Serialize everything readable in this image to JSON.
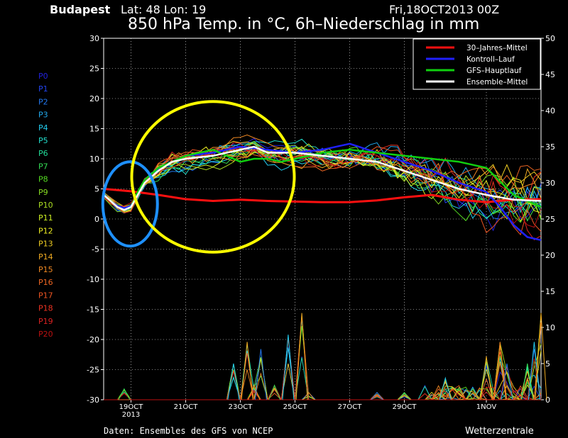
{
  "header": {
    "location": "Budapest",
    "lat_lon": "Lat: 48 Lon: 19",
    "run": "Fri,18OCT2013 00Z",
    "title": "850 hPa Temp. in °C, 6h–Niederschlag in mm"
  },
  "footer": {
    "source": "Daten: Ensembles des GFS von NCEP",
    "brand": "Wetterzentrale"
  },
  "colors": {
    "background": "#000000",
    "climate": "#ff1010",
    "control": "#2020ff",
    "main": "#10d010",
    "mean": "#ffffff",
    "blue_circle": "#1e90ff",
    "yellow_circle": "#ffff00"
  },
  "annotations": [
    {
      "name": "blue-circle",
      "color": "#1e90ff",
      "x_range": [
        "19OCT",
        "20OCT"
      ],
      "y_range": [
        -4.5,
        9.5
      ]
    },
    {
      "name": "yellow-circle",
      "color": "#ffff00",
      "x_range": [
        "22OCT",
        "25OCT"
      ],
      "y_range": [
        -5.5,
        19.5
      ]
    }
  ],
  "chart_data": {
    "type": "line",
    "title": "850 hPa Temp. in °C, 6h–Niederschlag in mm",
    "y_left_label": "°C",
    "y_right_label": "mm",
    "y_left_range": [
      -30,
      30
    ],
    "y_left_ticks": [
      30,
      25,
      20,
      15,
      10,
      5,
      0,
      -5,
      -10,
      -15,
      -20,
      -25,
      -30
    ],
    "y_right_range": [
      0,
      50
    ],
    "y_right_ticks": [
      50,
      45,
      40,
      35,
      30,
      25,
      20,
      15,
      10,
      5,
      0
    ],
    "x_unit": "hours since 18OCT2013 00Z",
    "x_range": [
      0,
      384
    ],
    "x_ticks": [
      {
        "label": "19OCT",
        "sub": "2013",
        "hour": 24
      },
      {
        "label": "21OCT",
        "sub": "",
        "hour": 72
      },
      {
        "label": "23OCT",
        "sub": "",
        "hour": 120
      },
      {
        "label": "25OCT",
        "sub": "",
        "hour": 168
      },
      {
        "label": "27OCT",
        "sub": "",
        "hour": 216
      },
      {
        "label": "29OCT",
        "sub": "",
        "hour": 264
      },
      {
        "label": "1NOV",
        "sub": "",
        "hour": 336
      }
    ],
    "grid": true,
    "legend_position": "top-right",
    "legend": [
      {
        "name": "30–Jahres–Mittel",
        "color": "#ff1010"
      },
      {
        "name": "Kontroll–Lauf",
        "color": "#2020ff"
      },
      {
        "name": "GFS–Hauptlauf",
        "color": "#10d010"
      },
      {
        "name": "Ensemble–Mittel",
        "color": "#ffffff"
      }
    ],
    "members": [
      {
        "name": "P0",
        "color": "#2222dd"
      },
      {
        "name": "P1",
        "color": "#2244ee"
      },
      {
        "name": "P2",
        "color": "#2277ee"
      },
      {
        "name": "P3",
        "color": "#22aaee"
      },
      {
        "name": "P4",
        "color": "#22ccee"
      },
      {
        "name": "P5",
        "color": "#22ddcc"
      },
      {
        "name": "P6",
        "color": "#22dd99"
      },
      {
        "name": "P7",
        "color": "#33dd55"
      },
      {
        "name": "P8",
        "color": "#55dd22"
      },
      {
        "name": "P9",
        "color": "#88dd22"
      },
      {
        "name": "P10",
        "color": "#aadd22"
      },
      {
        "name": "P11",
        "color": "#ccee22"
      },
      {
        "name": "P12",
        "color": "#eeee22"
      },
      {
        "name": "P13",
        "color": "#eecc22"
      },
      {
        "name": "P14",
        "color": "#eeaa22"
      },
      {
        "name": "P15",
        "color": "#ee8822"
      },
      {
        "name": "P16",
        "color": "#ee6622"
      },
      {
        "name": "P17",
        "color": "#ee5522"
      },
      {
        "name": "P18",
        "color": "#ee3322"
      },
      {
        "name": "P19",
        "color": "#dd2222"
      },
      {
        "name": "P20",
        "color": "#bb1111"
      }
    ],
    "series": [
      {
        "name": "30–Jahres–Mittel",
        "axis": "left",
        "color": "#ff1010",
        "x": [
          0,
          24,
          48,
          72,
          96,
          120,
          144,
          168,
          192,
          216,
          240,
          264,
          288,
          312,
          336,
          360,
          384
        ],
        "y": [
          5.0,
          4.6,
          4.0,
          3.3,
          3.0,
          3.2,
          3.0,
          2.9,
          2.8,
          2.8,
          3.1,
          3.6,
          4.0,
          3.2,
          2.8,
          3.2,
          3.3
        ]
      },
      {
        "name": "Ensemble–Mittel",
        "axis": "left",
        "color": "#ffffff",
        "x": [
          0,
          6,
          12,
          18,
          24,
          30,
          36,
          48,
          60,
          72,
          96,
          120,
          132,
          144,
          168,
          192,
          216,
          240,
          264,
          288,
          312,
          336,
          360,
          384
        ],
        "y": [
          4.0,
          3.0,
          2.0,
          1.5,
          2.0,
          4.0,
          6.0,
          8.0,
          9.5,
          10.0,
          10.5,
          11.5,
          12.0,
          11.0,
          11.0,
          10.5,
          10.0,
          9.5,
          8.0,
          6.5,
          5.0,
          4.0,
          3.2,
          3.0
        ]
      },
      {
        "name": "GFS–Hauptlauf",
        "axis": "left",
        "color": "#10d010",
        "x": [
          0,
          6,
          12,
          18,
          24,
          30,
          36,
          48,
          60,
          72,
          84,
          96,
          108,
          120,
          132,
          144,
          156,
          168,
          192,
          216,
          240,
          264,
          288,
          312,
          336,
          360,
          384
        ],
        "y": [
          4.0,
          3.0,
          2.0,
          1.5,
          2.0,
          4.5,
          6.5,
          8.5,
          9.5,
          10.5,
          11.0,
          11.5,
          10.5,
          9.5,
          10.0,
          10.0,
          9.5,
          10.0,
          11.0,
          11.5,
          11.0,
          10.5,
          10.0,
          9.5,
          8.5,
          4.0,
          2.0
        ]
      },
      {
        "name": "Kontroll–Lauf",
        "axis": "left",
        "color": "#2020ff",
        "x": [
          0,
          6,
          12,
          18,
          24,
          30,
          36,
          48,
          60,
          72,
          96,
          120,
          144,
          168,
          192,
          216,
          240,
          264,
          288,
          312,
          336,
          348,
          360,
          372,
          384
        ],
        "y": [
          4.0,
          3.0,
          2.2,
          1.8,
          2.2,
          4.0,
          6.5,
          8.5,
          9.5,
          10.5,
          11.0,
          12.0,
          11.5,
          11.0,
          11.5,
          12.5,
          11.0,
          9.5,
          8.0,
          6.0,
          4.5,
          2.0,
          -1.0,
          -3.0,
          -3.5
        ]
      }
    ],
    "precip_peaks_mm": [
      {
        "x": 18,
        "mm": 1.5
      },
      {
        "x": 114,
        "mm": 5
      },
      {
        "x": 126,
        "mm": 8
      },
      {
        "x": 132,
        "mm": 2
      },
      {
        "x": 138,
        "mm": 7
      },
      {
        "x": 150,
        "mm": 2
      },
      {
        "x": 162,
        "mm": 9
      },
      {
        "x": 174,
        "mm": 12
      },
      {
        "x": 180,
        "mm": 1
      },
      {
        "x": 240,
        "mm": 1
      },
      {
        "x": 264,
        "mm": 1
      },
      {
        "x": 300,
        "mm": 3
      },
      {
        "x": 336,
        "mm": 6
      },
      {
        "x": 348,
        "mm": 8
      },
      {
        "x": 354,
        "mm": 5
      },
      {
        "x": 372,
        "mm": 5
      },
      {
        "x": 378,
        "mm": 8
      },
      {
        "x": 384,
        "mm": 12
      }
    ]
  }
}
